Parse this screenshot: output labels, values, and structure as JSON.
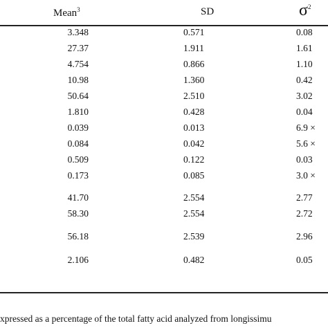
{
  "header": {
    "mean": "Mean",
    "mean_sup": "3",
    "sd": "SD",
    "sigma": "σ",
    "sigma_sup": "2"
  },
  "rows": [
    {
      "mean": "3.348",
      "sd": "0.571",
      "sigma": "0.08"
    },
    {
      "mean": "27.37",
      "sd": "1.911",
      "sigma": "1.61"
    },
    {
      "mean": "4.754",
      "sd": "0.866",
      "sigma": "1.10"
    },
    {
      "mean": "10.98",
      "sd": "1.360",
      "sigma": "0.42"
    },
    {
      "mean": "50.64",
      "sd": "2.510",
      "sigma": "3.02"
    },
    {
      "mean": "1.810",
      "sd": "0.428",
      "sigma": "0.04"
    },
    {
      "mean": "0.039",
      "sd": "0.013",
      "sigma": "6.9 ×"
    },
    {
      "mean": "0.084",
      "sd": "0.042",
      "sigma": "5.6 ×"
    },
    {
      "mean": "0.509",
      "sd": "0.122",
      "sigma": "0.03"
    },
    {
      "mean": "0.173",
      "sd": "0.085",
      "sigma": "3.0 ×"
    },
    {
      "mean": "41.70",
      "sd": "2.554",
      "sigma": "2.77"
    },
    {
      "mean": "58.30",
      "sd": "2.554",
      "sigma": "2.72"
    },
    {
      "mean": "56.18",
      "sd": "2.539",
      "sigma": "2.96"
    },
    {
      "mean": "2.106",
      "sd": "0.482",
      "sigma": "0.05"
    }
  ],
  "footnote": "xpressed as a percentage of the total fatty acid analyzed from longissimu"
}
